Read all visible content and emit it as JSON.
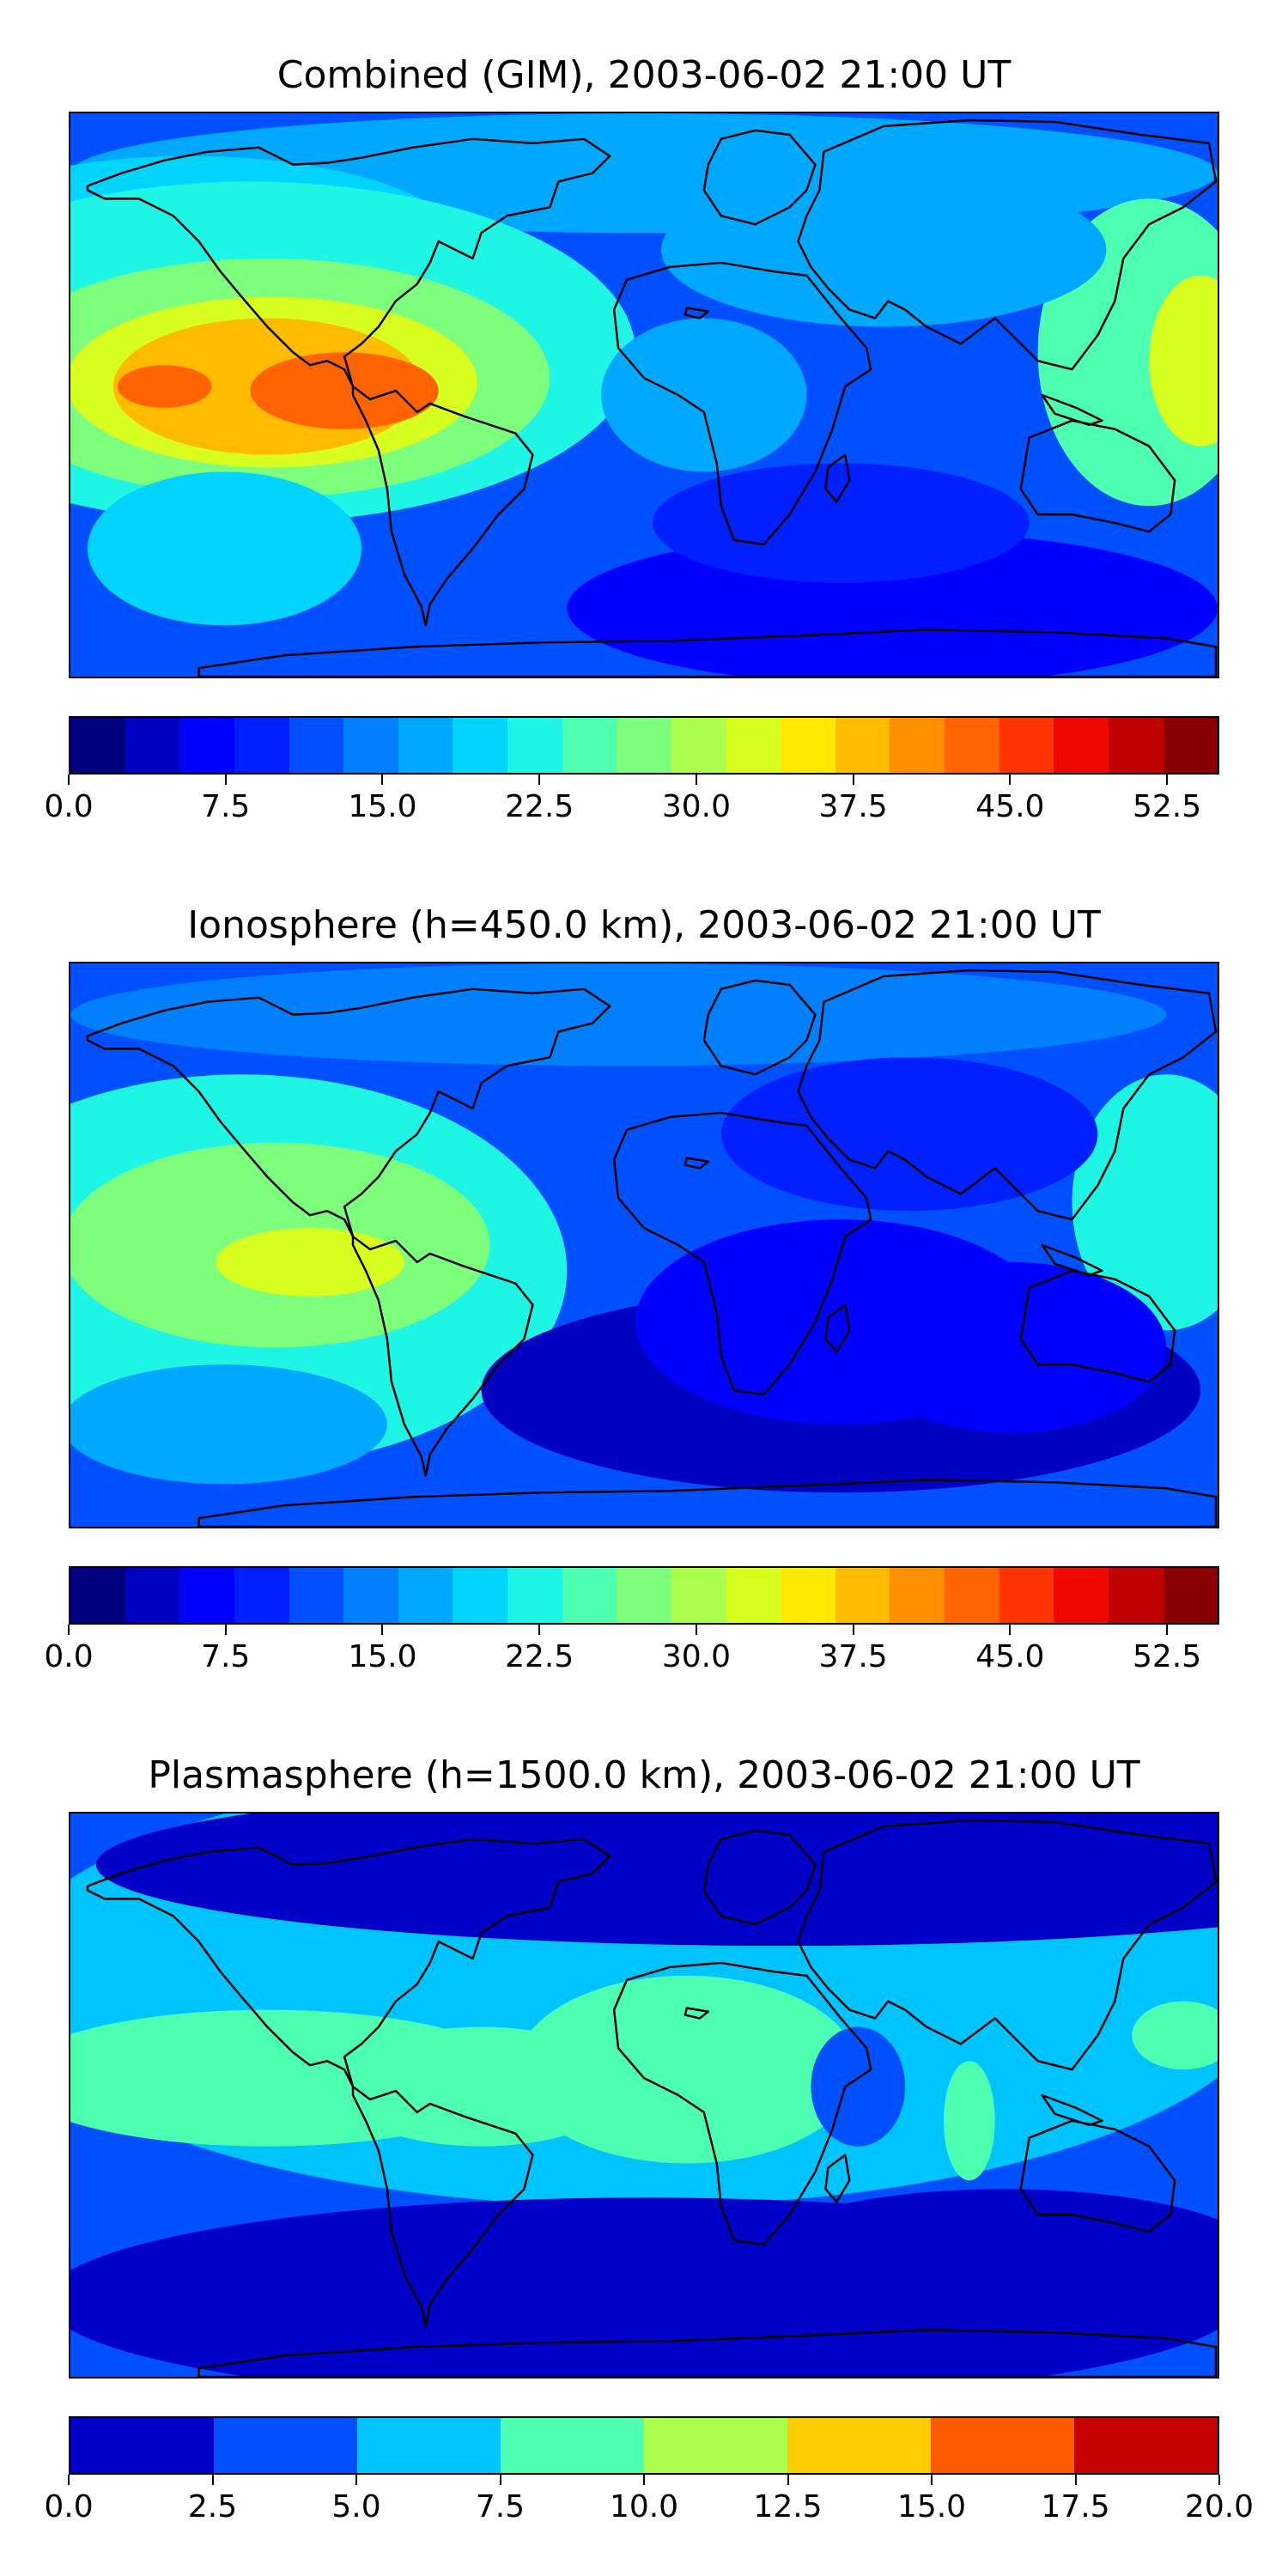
{
  "panels": [
    {
      "title": "Combined (GIM), 2003-06-02 21:00 UT",
      "field": "combined",
      "colorbar": {
        "range": [
          0,
          55
        ],
        "colors": [
          "#00007f",
          "#0000c0",
          "#0000ff",
          "#0020ff",
          "#0050ff",
          "#0080ff",
          "#00a8ff",
          "#00d4ff",
          "#1ff5e4",
          "#4dffb0",
          "#7dff7d",
          "#adff4d",
          "#d8ff1f",
          "#ffe800",
          "#ffbb00",
          "#ff8f00",
          "#ff6400",
          "#ff3400",
          "#ee0900",
          "#be0000",
          "#8a0000"
        ],
        "tick_labels": [
          "0.0",
          "7.5",
          "15.0",
          "22.5",
          "30.0",
          "37.5",
          "45.0",
          "52.5"
        ],
        "tick_values": [
          0,
          7.5,
          15,
          22.5,
          30,
          37.5,
          45,
          52.5
        ]
      }
    },
    {
      "title": "Ionosphere  (h=450.0 km), 2003-06-02 21:00 UT",
      "field": "ionosphere",
      "colorbar": {
        "range": [
          0,
          55
        ],
        "colors": [
          "#00007f",
          "#0000c0",
          "#0000ff",
          "#0020ff",
          "#0050ff",
          "#0080ff",
          "#00a8ff",
          "#00d4ff",
          "#1ff5e4",
          "#4dffb0",
          "#7dff7d",
          "#adff4d",
          "#d8ff1f",
          "#ffe800",
          "#ffbb00",
          "#ff8f00",
          "#ff6400",
          "#ff3400",
          "#ee0900",
          "#be0000",
          "#8a0000"
        ],
        "tick_labels": [
          "0.0",
          "7.5",
          "15.0",
          "22.5",
          "30.0",
          "37.5",
          "45.0",
          "52.5"
        ],
        "tick_values": [
          0,
          7.5,
          15,
          22.5,
          30,
          37.5,
          45,
          52.5
        ]
      }
    },
    {
      "title": "Plasmasphere (h=1500.0 km), 2003-06-02 21:00 UT",
      "field": "plasmasphere",
      "colorbar": {
        "range": [
          0,
          20
        ],
        "colors": [
          "#0000c8",
          "#0050ff",
          "#00c4ff",
          "#4dffb0",
          "#adff4d",
          "#ffcc00",
          "#ff5a00",
          "#c40000"
        ],
        "tick_labels": [
          "0.0",
          "2.5",
          "5.0",
          "7.5",
          "10.0",
          "12.5",
          "15.0",
          "17.5",
          "20.0"
        ],
        "tick_values": [
          0,
          2.5,
          5,
          7.5,
          10,
          12.5,
          15,
          17.5,
          20
        ]
      }
    }
  ]
}
